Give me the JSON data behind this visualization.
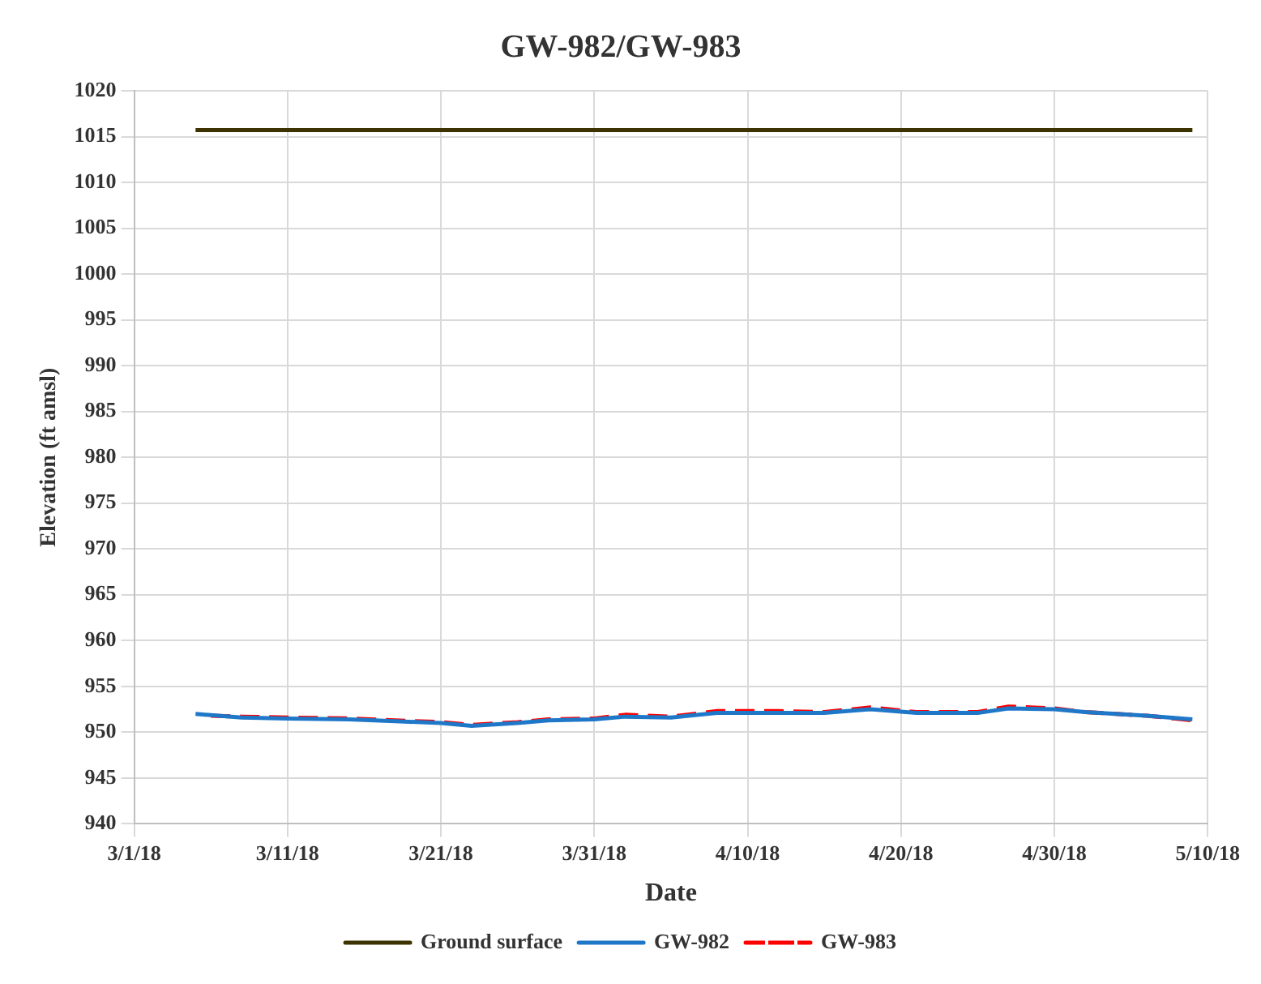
{
  "chart_data": {
    "type": "line",
    "title": "GW-982/GW-983",
    "xlabel": "Date",
    "ylabel": "Elevation (ft amsl)",
    "xlim": [
      "--03-01",
      "--05-10"
    ],
    "xticks": [
      {
        "value": "--03-01",
        "label": "3/1/18"
      },
      {
        "value": "--03-11",
        "label": "3/11/18"
      },
      {
        "value": "--03-21",
        "label": "3/21/18"
      },
      {
        "value": "--03-31",
        "label": "3/31/18"
      },
      {
        "value": "--04-10",
        "label": "4/10/18"
      },
      {
        "value": "--04-20",
        "label": "4/20/18"
      },
      {
        "value": "--04-30",
        "label": "4/30/18"
      },
      {
        "value": "--05-10",
        "label": "5/10/18"
      }
    ],
    "ylim": [
      940,
      1020
    ],
    "yticks": [
      940,
      945,
      950,
      955,
      960,
      965,
      970,
      975,
      980,
      985,
      990,
      995,
      1000,
      1005,
      1010,
      1015,
      1020
    ],
    "grid": true,
    "legend": "bottom",
    "marker": "none",
    "series": [
      {
        "name": "Ground surface",
        "color": "#3d3300",
        "line_style": "solid",
        "x": [
          "--03-05",
          "--05-09"
        ],
        "values": [
          1015.7,
          1015.7
        ]
      },
      {
        "name": "GW-982",
        "color": "#1f77c8",
        "line_style": "solid",
        "x": [
          "--03-05",
          "--03-08",
          "--03-11",
          "--03-15",
          "--03-18",
          "--03-21",
          "--03-23",
          "--03-26",
          "--03-28",
          "--03-31",
          "--04-02",
          "--04-05",
          "--04-08",
          "--04-12",
          "--04-15",
          "--04-18",
          "--04-21",
          "--04-25",
          "--04-27",
          "--04-30",
          "--05-02",
          "--05-06",
          "--05-09"
        ],
        "values": [
          952.0,
          951.6,
          951.5,
          951.4,
          951.2,
          951.0,
          950.7,
          951.0,
          951.3,
          951.4,
          951.7,
          951.6,
          952.1,
          952.1,
          952.1,
          952.5,
          952.1,
          952.1,
          952.6,
          952.5,
          952.2,
          951.8,
          951.4
        ]
      },
      {
        "name": "GW-983",
        "color": "#ff0000",
        "line_style": "dashed",
        "x": [
          "--03-06",
          "--03-08",
          "--03-11",
          "--03-15",
          "--03-18",
          "--03-21",
          "--03-23",
          "--03-26",
          "--03-28",
          "--03-31",
          "--04-02",
          "--04-05",
          "--04-08",
          "--04-12",
          "--04-15",
          "--04-18",
          "--04-21",
          "--04-25",
          "--04-27",
          "--04-30",
          "--05-02",
          "--05-06",
          "--05-09"
        ],
        "values": [
          951.8,
          951.7,
          951.6,
          951.5,
          951.3,
          951.1,
          950.8,
          951.1,
          951.4,
          951.5,
          951.9,
          951.7,
          952.3,
          952.3,
          952.2,
          952.7,
          952.2,
          952.2,
          952.8,
          952.6,
          952.2,
          951.8,
          951.3
        ]
      }
    ]
  }
}
